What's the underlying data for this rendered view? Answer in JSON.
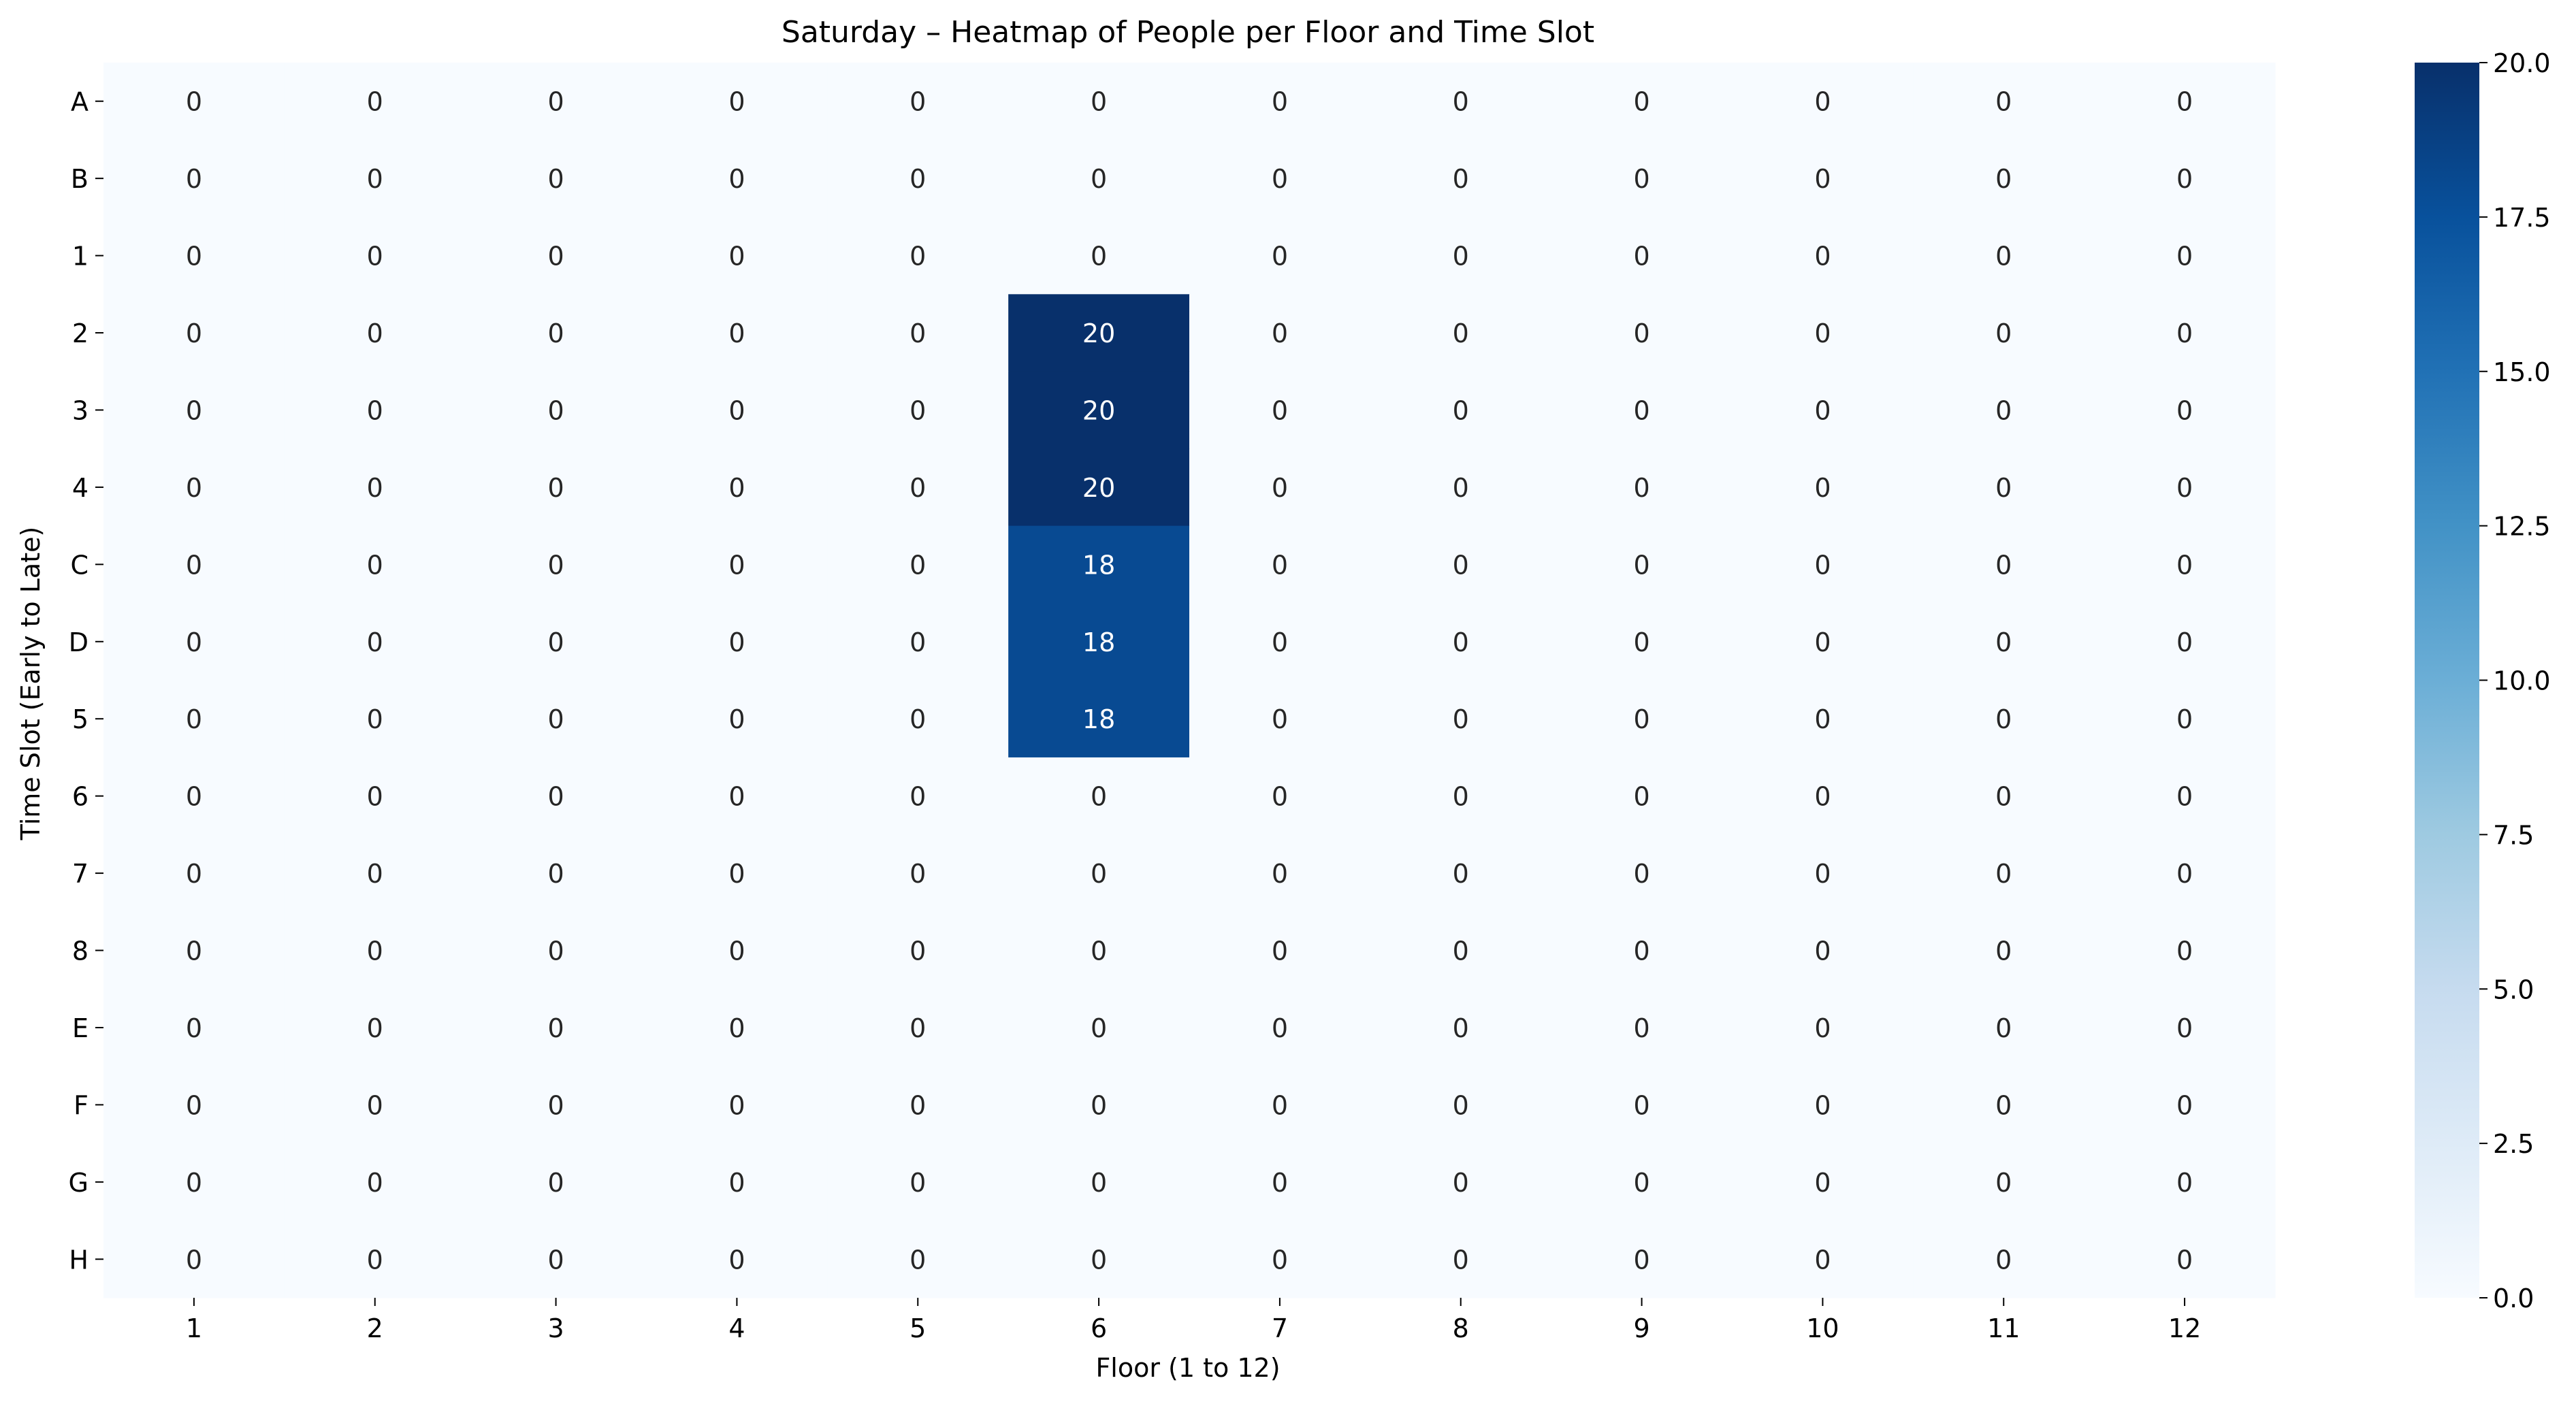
{
  "chart_data": {
    "type": "heatmap",
    "title": "Saturday – Heatmap of People per Floor and Time Slot",
    "xlabel": "Floor (1 to 12)",
    "ylabel": "Time Slot (Early to Late)",
    "x_categories": [
      "1",
      "2",
      "3",
      "4",
      "5",
      "6",
      "7",
      "8",
      "9",
      "10",
      "11",
      "12"
    ],
    "y_categories": [
      "A",
      "B",
      "1",
      "2",
      "3",
      "4",
      "C",
      "D",
      "5",
      "6",
      "7",
      "8",
      "E",
      "F",
      "G",
      "H"
    ],
    "values": [
      [
        0,
        0,
        0,
        0,
        0,
        0,
        0,
        0,
        0,
        0,
        0,
        0
      ],
      [
        0,
        0,
        0,
        0,
        0,
        0,
        0,
        0,
        0,
        0,
        0,
        0
      ],
      [
        0,
        0,
        0,
        0,
        0,
        0,
        0,
        0,
        0,
        0,
        0,
        0
      ],
      [
        0,
        0,
        0,
        0,
        0,
        20,
        0,
        0,
        0,
        0,
        0,
        0
      ],
      [
        0,
        0,
        0,
        0,
        0,
        20,
        0,
        0,
        0,
        0,
        0,
        0
      ],
      [
        0,
        0,
        0,
        0,
        0,
        20,
        0,
        0,
        0,
        0,
        0,
        0
      ],
      [
        0,
        0,
        0,
        0,
        0,
        18,
        0,
        0,
        0,
        0,
        0,
        0
      ],
      [
        0,
        0,
        0,
        0,
        0,
        18,
        0,
        0,
        0,
        0,
        0,
        0
      ],
      [
        0,
        0,
        0,
        0,
        0,
        18,
        0,
        0,
        0,
        0,
        0,
        0
      ],
      [
        0,
        0,
        0,
        0,
        0,
        0,
        0,
        0,
        0,
        0,
        0,
        0
      ],
      [
        0,
        0,
        0,
        0,
        0,
        0,
        0,
        0,
        0,
        0,
        0,
        0
      ],
      [
        0,
        0,
        0,
        0,
        0,
        0,
        0,
        0,
        0,
        0,
        0,
        0
      ],
      [
        0,
        0,
        0,
        0,
        0,
        0,
        0,
        0,
        0,
        0,
        0,
        0
      ],
      [
        0,
        0,
        0,
        0,
        0,
        0,
        0,
        0,
        0,
        0,
        0,
        0
      ],
      [
        0,
        0,
        0,
        0,
        0,
        0,
        0,
        0,
        0,
        0,
        0,
        0
      ],
      [
        0,
        0,
        0,
        0,
        0,
        0,
        0,
        0,
        0,
        0,
        0,
        0
      ]
    ],
    "colormap": "Blues",
    "color_range": [
      0,
      20
    ],
    "colorbar_ticks": [
      "0.0",
      "2.5",
      "5.0",
      "7.5",
      "10.0",
      "12.5",
      "15.0",
      "17.5",
      "20.0"
    ],
    "colorbar_position": "right",
    "annotated": true,
    "grid": false
  }
}
